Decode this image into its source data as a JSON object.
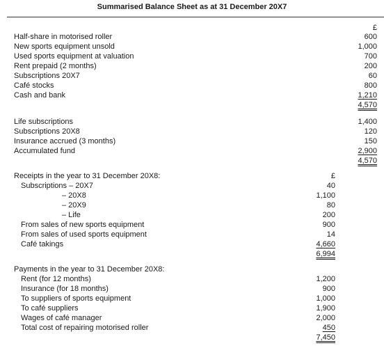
{
  "title": "Summarised Balance Sheet as at 31 December 20X7",
  "balance_sheet": {
    "currency": "£",
    "assets": [
      {
        "label": "Half-share in motorised roller",
        "value": "600"
      },
      {
        "label": "New sports equipment unsold",
        "value": "1,000"
      },
      {
        "label": "Used sports equipment at valuation",
        "value": "700"
      },
      {
        "label": "Rent prepaid (2 months)",
        "value": "200"
      },
      {
        "label": "Subscriptions 20X7",
        "value": "60"
      },
      {
        "label": "Café stocks",
        "value": "800"
      },
      {
        "label": "Cash and bank",
        "value": "1,210"
      }
    ],
    "assets_total": "4,570",
    "liabilities": [
      {
        "label": "Life subscriptions",
        "value": "1,400"
      },
      {
        "label": "Subscriptions 20X8",
        "value": "120"
      },
      {
        "label": "Insurance accrued (3 months)",
        "value": "150"
      },
      {
        "label": "Accumulated fund",
        "value": "2,900"
      }
    ],
    "liabilities_total": "4,570"
  },
  "receipts": {
    "heading": "Receipts in the year to 31 December 20X8:",
    "currency": "£",
    "items": [
      {
        "label": "Subscriptions – 20X7",
        "value": "40"
      },
      {
        "label": "– 20X8",
        "value": "1,100"
      },
      {
        "label": "– 20X9",
        "value": "80"
      },
      {
        "label": "– Life",
        "value": "200"
      },
      {
        "label": "From sales of new sports equipment",
        "value": "900"
      },
      {
        "label": "From sales of used sports equipment",
        "value": "14"
      },
      {
        "label": "Café takings",
        "value": "4,660"
      }
    ],
    "total": "6,994"
  },
  "payments": {
    "heading": "Payments in the year to 31 December 20X8:",
    "items": [
      {
        "label": "Rent (for 12 months)",
        "value": "1,200"
      },
      {
        "label": "Insurance (for 18 months)",
        "value": "900"
      },
      {
        "label": "To suppliers of sports equipment",
        "value": "1,000"
      },
      {
        "label": "To café suppliers",
        "value": "1,900"
      },
      {
        "label": "Wages of café manager",
        "value": "2,000"
      },
      {
        "label": "Total cost of repairing motorised roller",
        "value": "450"
      }
    ],
    "total": "7,450"
  }
}
